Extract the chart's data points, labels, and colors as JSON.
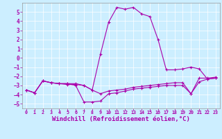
{
  "background_color": "#cceeff",
  "line_color": "#aa00aa",
  "marker": "+",
  "markersize": 3,
  "linewidth": 0.8,
  "xlabel": "Windchill (Refroidissement éolien,°C)",
  "xlabel_fontsize": 6.5,
  "xtick_fontsize": 4.8,
  "ytick_fontsize": 5.5,
  "xlim": [
    -0.5,
    23.5
  ],
  "ylim": [
    -5.5,
    6.0
  ],
  "yticks": [
    -5,
    -4,
    -3,
    -2,
    -1,
    0,
    1,
    2,
    3,
    4,
    5
  ],
  "xticks": [
    0,
    1,
    2,
    3,
    4,
    5,
    6,
    7,
    8,
    9,
    10,
    11,
    12,
    13,
    14,
    15,
    16,
    17,
    18,
    19,
    20,
    21,
    22,
    23
  ],
  "series1": [
    [
      0,
      -3.5
    ],
    [
      1,
      -3.8
    ],
    [
      2,
      -2.5
    ],
    [
      3,
      -2.7
    ],
    [
      4,
      -2.8
    ],
    [
      5,
      -2.8
    ],
    [
      6,
      -3.0
    ],
    [
      7,
      -4.8
    ],
    [
      8,
      -4.8
    ],
    [
      9,
      -4.7
    ],
    [
      10,
      -3.9
    ],
    [
      11,
      -3.8
    ],
    [
      12,
      -3.6
    ],
    [
      13,
      -3.4
    ],
    [
      14,
      -3.3
    ],
    [
      15,
      -3.2
    ],
    [
      16,
      -3.1
    ],
    [
      17,
      -3.0
    ],
    [
      18,
      -3.0
    ],
    [
      19,
      -3.0
    ],
    [
      20,
      -3.9
    ],
    [
      21,
      -2.6
    ],
    [
      22,
      -2.3
    ],
    [
      23,
      -2.2
    ]
  ],
  "series2": [
    [
      0,
      -3.5
    ],
    [
      1,
      -3.8
    ],
    [
      2,
      -2.5
    ],
    [
      3,
      -2.7
    ],
    [
      4,
      -2.8
    ],
    [
      5,
      -2.8
    ],
    [
      6,
      -2.8
    ],
    [
      7,
      -3.0
    ],
    [
      8,
      -3.5
    ],
    [
      9,
      0.4
    ],
    [
      10,
      3.9
    ],
    [
      11,
      5.5
    ],
    [
      12,
      5.3
    ],
    [
      13,
      5.5
    ],
    [
      14,
      4.8
    ],
    [
      15,
      4.5
    ],
    [
      16,
      2.0
    ],
    [
      17,
      -1.3
    ],
    [
      18,
      -1.3
    ],
    [
      19,
      -1.2
    ],
    [
      20,
      -1.0
    ],
    [
      21,
      -1.2
    ],
    [
      22,
      -2.3
    ],
    [
      23,
      -2.2
    ]
  ],
  "series3": [
    [
      0,
      -3.5
    ],
    [
      1,
      -3.8
    ],
    [
      2,
      -2.5
    ],
    [
      3,
      -2.7
    ],
    [
      4,
      -2.8
    ],
    [
      5,
      -2.9
    ],
    [
      6,
      -2.9
    ],
    [
      7,
      -3.0
    ],
    [
      8,
      -3.5
    ],
    [
      9,
      -3.9
    ],
    [
      10,
      -3.6
    ],
    [
      11,
      -3.5
    ],
    [
      12,
      -3.4
    ],
    [
      13,
      -3.2
    ],
    [
      14,
      -3.1
    ],
    [
      15,
      -3.0
    ],
    [
      16,
      -2.9
    ],
    [
      17,
      -2.8
    ],
    [
      18,
      -2.7
    ],
    [
      19,
      -2.7
    ],
    [
      20,
      -3.9
    ],
    [
      21,
      -2.2
    ],
    [
      22,
      -2.2
    ],
    [
      23,
      -2.1
    ]
  ]
}
